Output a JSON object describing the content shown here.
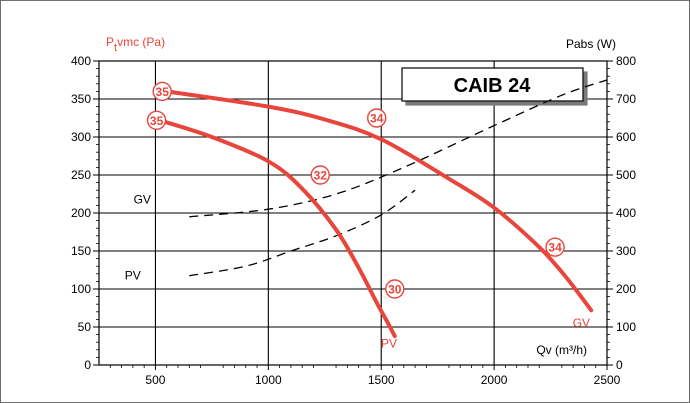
{
  "chart_data": {
    "type": "line",
    "title": "CAIB 24",
    "xlabel": "Qv (m³/h)",
    "ylabel_left": "Ptvmc (Pa)",
    "ylabel_left_main": "P",
    "ylabel_left_sub": "t",
    "ylabel_left_rest": "vmc (Pa)",
    "ylabel_right": "Pabs (W)",
    "xlim": [
      250,
      2500
    ],
    "ylim_left": [
      0,
      400
    ],
    "ylim_right": [
      0,
      800
    ],
    "x_ticks": [
      500,
      1000,
      1500,
      2000,
      2500
    ],
    "y_left_ticks": [
      0,
      50,
      100,
      150,
      200,
      250,
      300,
      350,
      400
    ],
    "y_right_ticks": [
      0,
      100,
      200,
      300,
      400,
      500,
      600,
      700,
      800
    ],
    "grid": true,
    "colors": {
      "pressure": "#e8453c",
      "power": "#000000"
    },
    "pressure_series": [
      {
        "name": "GV",
        "axis": "left",
        "style": "solid",
        "x": [
          550,
          1000,
          1250,
          1500,
          1800,
          2000,
          2200,
          2320,
          2430
        ],
        "y": [
          360,
          340,
          323,
          297,
          245,
          207,
          155,
          115,
          72
        ]
      },
      {
        "name": "PV",
        "axis": "left",
        "style": "solid",
        "x": [
          520,
          750,
          1000,
          1150,
          1300,
          1400,
          1480,
          1530,
          1560
        ],
        "y": [
          322,
          300,
          268,
          232,
          178,
          128,
          82,
          55,
          38
        ]
      }
    ],
    "power_series": [
      {
        "name": "GV",
        "axis": "right",
        "style": "dashed",
        "x": [
          650,
          1000,
          1300,
          1600,
          2000,
          2300,
          2500
        ],
        "y": [
          390,
          410,
          450,
          520,
          630,
          710,
          750
        ]
      },
      {
        "name": "PV",
        "axis": "right",
        "style": "dashed",
        "x": [
          650,
          900,
          1100,
          1300,
          1500,
          1650
        ],
        "y": [
          235,
          260,
          300,
          340,
          395,
          460
        ]
      }
    ],
    "markers": [
      {
        "label": "35",
        "x": 530,
        "y": 360,
        "style": "circled"
      },
      {
        "label": "35",
        "x": 505,
        "y": 322,
        "style": "circled"
      },
      {
        "label": "34",
        "x": 1480,
        "y": 325,
        "style": "circled"
      },
      {
        "label": "32",
        "x": 1230,
        "y": 250,
        "style": "circled"
      },
      {
        "label": "34",
        "x": 2270,
        "y": 155,
        "style": "circled"
      },
      {
        "label": "30",
        "x": 1560,
        "y": 100,
        "style": "circled"
      }
    ],
    "curve_labels": [
      {
        "text": "GV",
        "x": 480,
        "y": 218,
        "color": "#000000"
      },
      {
        "text": "PV",
        "x": 435,
        "y": 118,
        "color": "#000000"
      },
      {
        "text": "PV",
        "x": 1570,
        "y": 28,
        "color": "#e8453c"
      },
      {
        "text": "GV",
        "x": 2425,
        "y": 55,
        "color": "#e8453c"
      }
    ]
  }
}
